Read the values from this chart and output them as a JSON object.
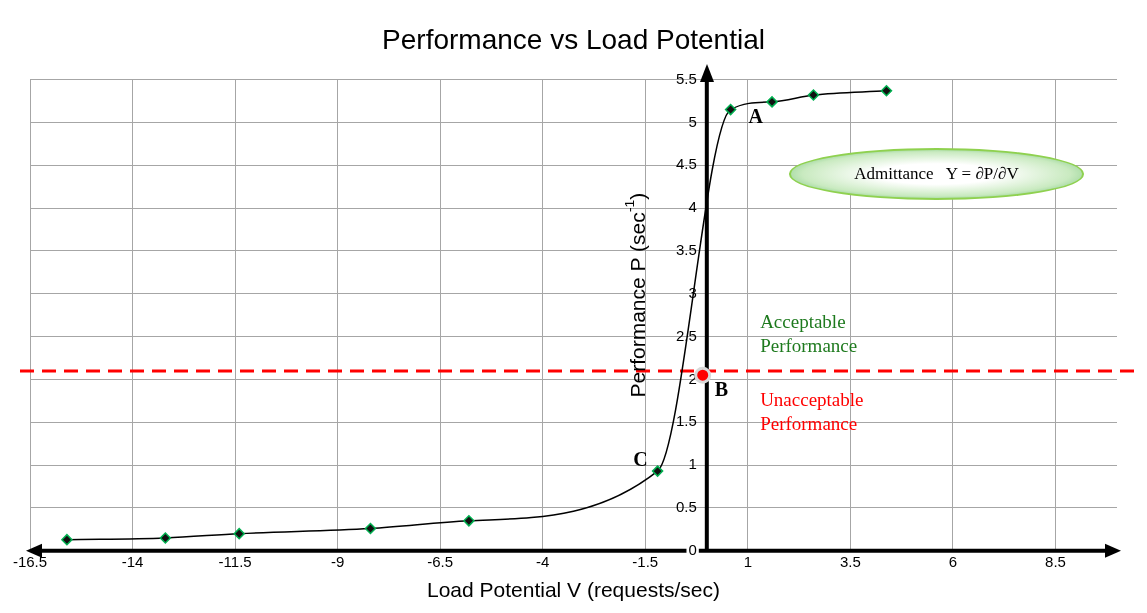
{
  "chart_data": {
    "type": "line",
    "title": "Performance vs Load Potential",
    "xlabel": "Load Potential V (requests/sec)",
    "ylabel": "Performance P (sec$^{-1}$)",
    "series": [
      {
        "type": "line",
        "color": "#000000",
        "x": [
          -15.6,
          -13.2,
          -11.4,
          -8.2,
          -5.8,
          -1.2,
          0.58,
          1.59,
          2.6,
          4.38
        ],
        "values": [
          0.13,
          0.15,
          0.2,
          0.26,
          0.35,
          0.93,
          5.15,
          5.24,
          5.32,
          5.37
        ]
      },
      {
        "type": "scatter",
        "color": "#ff0000",
        "marker": "circle",
        "x": [
          -0.1
        ],
        "values": [
          2.05
        ]
      }
    ],
    "marker": "diamond",
    "grid": true,
    "xlim": [
      -16.5,
      10
    ],
    "xticks": [
      -16.5,
      -14,
      -11.5,
      -9,
      -6.5,
      -4,
      -1.5,
      1,
      3.5,
      6,
      8.5
    ],
    "ylim": [
      0,
      5.5
    ],
    "yticks": [
      0,
      0.5,
      1,
      1.5,
      2,
      2.5,
      3,
      3.5,
      4,
      4.5,
      5,
      5.5
    ],
    "ref_lines": [
      {
        "axis": "y",
        "value": 2.1,
        "color": "#ff0000",
        "line_style": "dashed"
      }
    ],
    "annotations": [
      {
        "text": "A",
        "x": 0.58,
        "y": 5.15
      },
      {
        "text": "B",
        "x": -0.1,
        "y": 2.05
      },
      {
        "text": "C",
        "x": -1.2,
        "y": 0.93
      },
      "Admittance   Y = ∂P/∂V",
      "Acceptable Performance",
      "Unacceptable Performance"
    ]
  }
}
